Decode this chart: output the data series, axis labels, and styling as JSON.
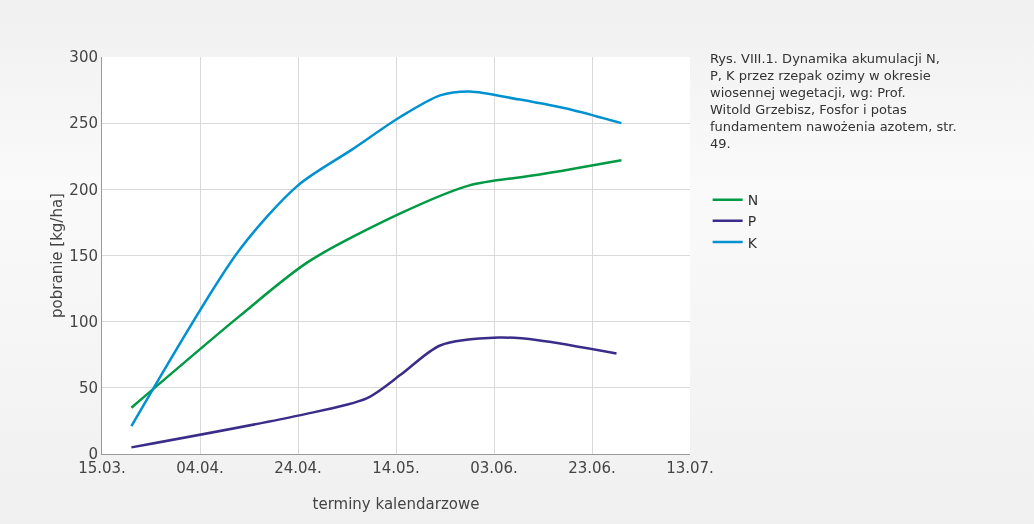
{
  "chart_data": {
    "type": "line",
    "xlabel": "terminy kalendarzowe",
    "ylabel": "pobranie [kg/ha]",
    "annotations": [
      "Rys. VIII.1. Dynamika akumulacji N, P, K przez rzepak ozimy w okresie wiosennej wegetacji, wg: Prof. Witold Grzebisz, Fosfor i potas fundamentem nawożenia azotem, str. 49."
    ],
    "x": [
      "--03-21",
      "--04-12",
      "--04-26",
      "--05-15",
      "--05-29",
      "--06-12",
      "--06-29"
    ],
    "series": [
      {
        "name": "N",
        "color": "#009a44",
        "values": [
          35,
          104,
          145,
          182,
          203,
          211,
          222
        ]
      },
      {
        "name": "P",
        "color": "#3a2d8a",
        "x": [
          "--03-21",
          "--04-24",
          "--05-08",
          "--05-15",
          "--05-23",
          "--06-04",
          "--06-12",
          "--06-28"
        ],
        "values": [
          5,
          29,
          42,
          60,
          82,
          88,
          86,
          76
        ]
      },
      {
        "name": "K",
        "color": "#0091d0",
        "x": [
          "--03-21",
          "--04-12",
          "--04-24",
          "--05-05",
          "--05-15",
          "--05-23",
          "--05-29",
          "--06-08",
          "--06-19",
          "--06-29"
        ],
        "values": [
          21,
          154,
          203,
          230,
          255,
          271,
          274,
          268,
          260,
          250
        ]
      }
    ],
    "xlim": [
      "--03-15",
      "--07-13"
    ],
    "xticks": [
      {
        "value": "--03-15",
        "label": "15.03."
      },
      {
        "value": "--04-04",
        "label": "04.04."
      },
      {
        "value": "--04-24",
        "label": "24.04."
      },
      {
        "value": "--05-14",
        "label": "14.05."
      },
      {
        "value": "--06-03",
        "label": "03.06."
      },
      {
        "value": "--06-23",
        "label": "23.06."
      },
      {
        "value": "--07-13",
        "label": "13.07."
      }
    ],
    "ylim": [
      0,
      300
    ],
    "yticks": [
      0,
      50,
      100,
      150,
      200,
      250,
      300
    ],
    "grid": true,
    "legend": "right",
    "marker": "none",
    "line_style": "solid"
  }
}
